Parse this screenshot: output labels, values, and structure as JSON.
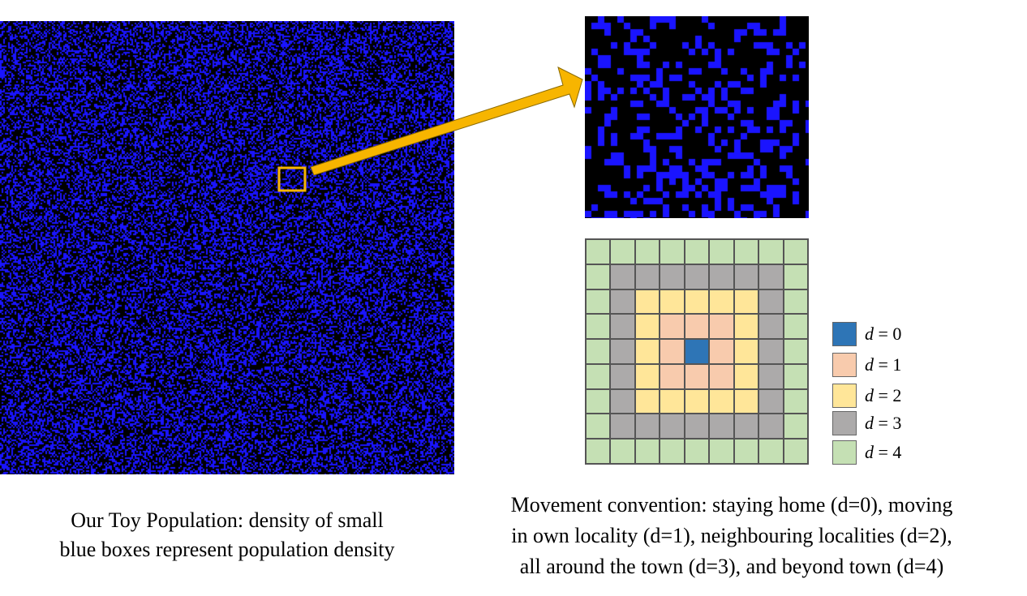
{
  "colors": {
    "background": "#000000",
    "person": "#1a14ff",
    "highlight": "#f7b500",
    "d0": "#2e75b6",
    "d1": "#f8cbad",
    "d2": "#ffe699",
    "d3": "#acaaaa",
    "d4": "#c5e0b4",
    "grid_line": "#555555"
  },
  "legend": [
    {
      "var": "d",
      "rest": " = 0",
      "color_key": "d0"
    },
    {
      "var": "d",
      "rest": " = 1",
      "color_key": "d1"
    },
    {
      "var": "d",
      "rest": " = 2",
      "color_key": "d2"
    },
    {
      "var": "d",
      "rest": " = 3",
      "color_key": "d3"
    },
    {
      "var": "d",
      "rest": " = 4",
      "color_key": "d4"
    }
  ],
  "captions": {
    "left": [
      "Our Toy Population: density of small",
      "blue boxes represent population density"
    ],
    "right": [
      "Movement convention: staying home (d=0), moving",
      "in own locality (d=1), neighbouring localities (d=2),",
      "all around the town (d=3), and beyond town (d=4)"
    ]
  }
}
